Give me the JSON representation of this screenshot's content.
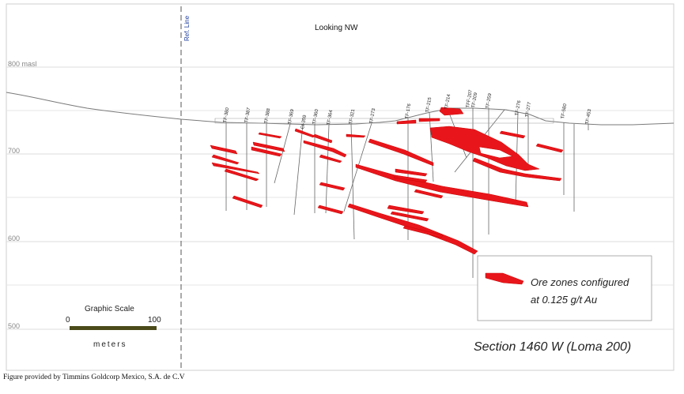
{
  "header": {
    "view_direction": "Looking NW",
    "ref_line_label": "Ref. Line"
  },
  "elevations": [
    {
      "label": "800 masl"
    },
    {
      "label": "700"
    },
    {
      "label": "600"
    },
    {
      "label": "500"
    }
  ],
  "drill_holes": [
    "TF-380",
    "TF-387",
    "TF-388",
    "TF-369",
    "CI-359",
    "TF-360",
    "TF-364",
    "TF-321",
    "TF-273",
    "TF-176",
    "TF-215",
    "TF-214",
    "TFF-207",
    "TF-209",
    "TF-259",
    "TF-276",
    "TF-277",
    "TF-580",
    "TF-453"
  ],
  "scale_bar": {
    "title": "Graphic Scale",
    "min": "0",
    "max": "100",
    "units": "meters"
  },
  "legend": {
    "line1": "Ore zones configured",
    "line2": "at 0.125 g/t Au",
    "swatch_color": "#e8161b"
  },
  "section_title": "Section 1460 W  (Loma 200)",
  "credit": "Figure provided by Timmins Goldcorp Mexico, S.A. de C.V",
  "colors": {
    "ore": "#e8161b",
    "ref_line": "#1a3a9a",
    "grid": "#d8d8d8"
  }
}
